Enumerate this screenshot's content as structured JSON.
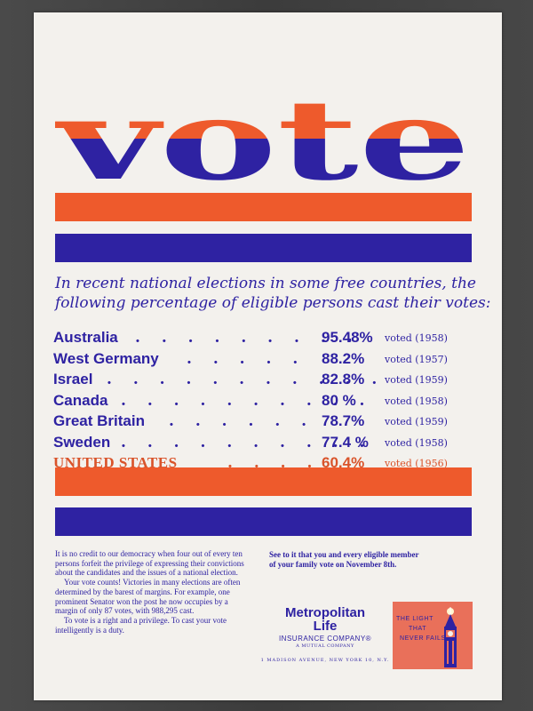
{
  "headline": "vote",
  "colors": {
    "orange": "#ee5a2c",
    "blue": "#2e22a2",
    "paper": "#f3f1ed",
    "us_orange": "#d9532a"
  },
  "intro": {
    "line1": "In recent national elections in some free countries, the",
    "line2": "following percentage of eligible persons cast their votes:"
  },
  "table": {
    "rows": [
      {
        "country": "Australia",
        "dots": ". . . . . . . . .",
        "percent": "95.48%",
        "voted": "voted (1958)"
      },
      {
        "country": "West Germany",
        "dots": ". . . . .",
        "percent": "88.2%",
        "voted": "voted (1957)"
      },
      {
        "country": "Israel",
        "dots": ". . . . . . . . . . .",
        "percent": "82.8%",
        "voted": "voted (1959)"
      },
      {
        "country": "Canada",
        "dots": ". . . . . . . . . .",
        "percent": "80 %",
        "voted": "voted (1958)"
      },
      {
        "country": "Great Britain",
        "dots": ". . . . . .",
        "percent": "78.7%",
        "voted": "voted (1959)"
      },
      {
        "country": "Sweden",
        "dots": ". . . . . . . . . .",
        "percent": "77.4 %",
        "voted": "voted (1958)"
      },
      {
        "country": "UNITED STATES",
        "dots": ". . . .",
        "percent": "60.4%",
        "voted": "voted (1956)"
      }
    ]
  },
  "body_text": {
    "p1": "It is no credit to our democracy when four out of every ten persons forfeit the privilege of expressing their convictions about the candidates and the issues of a national election.",
    "p2": "Your vote counts! Victories in many elections are often determined by the barest of margins. For example, one prominent Senator won the post he now occupies by a margin of only 87 votes, with 988,295 cast.",
    "p3": "To vote is a right and a privilege. To cast your vote intelligently is a duty."
  },
  "cta": "See to it that you and every eligible member of your family vote on November 8th.",
  "brand": {
    "name_line1": "Metropolitan",
    "name_line2": "Life",
    "sub": "INSURANCE COMPANY®",
    "mutual": "A MUTUAL COMPANY",
    "address": "1 MADISON AVENUE, NEW YORK 10, N.Y."
  },
  "logo": {
    "line1": "THE LIGHT",
    "line2": "THAT",
    "line3": "NEVER FAILS",
    "icon": "tower-icon"
  }
}
